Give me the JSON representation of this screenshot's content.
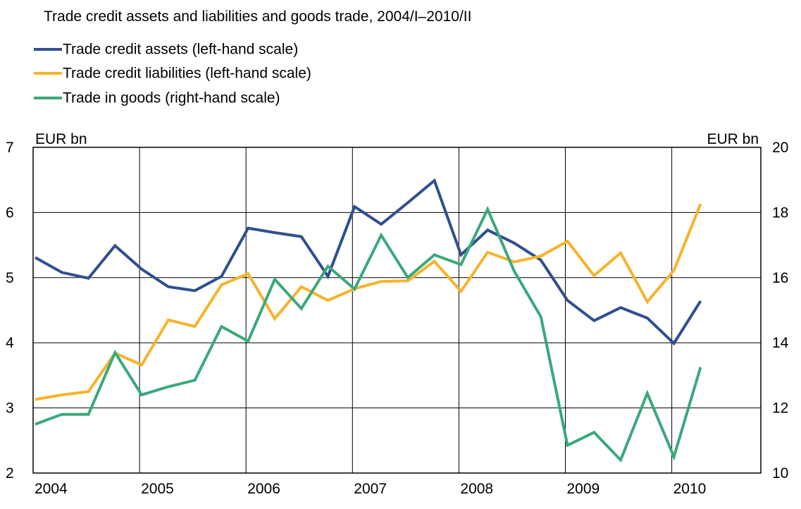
{
  "chart_data": {
    "type": "line",
    "title": "Trade credit assets and liabilities and goods trade, 2004/I–2010/II",
    "ylabel_left": "EUR bn",
    "ylabel_right": "EUR bn",
    "ylim_left": [
      2,
      7
    ],
    "ylim_right": [
      10,
      20
    ],
    "yticks_left": [
      "2",
      "3",
      "4",
      "5",
      "6",
      "7"
    ],
    "yticks_right": [
      "10",
      "12",
      "14",
      "16",
      "18",
      "20"
    ],
    "xticks": [
      "2004",
      "2005",
      "2006",
      "2007",
      "2008",
      "2009",
      "2010"
    ],
    "x": [
      "2004/I",
      "2004/II",
      "2004/III",
      "2004/IV",
      "2005/I",
      "2005/II",
      "2005/III",
      "2005/IV",
      "2006/I",
      "2006/II",
      "2006/III",
      "2006/IV",
      "2007/I",
      "2007/II",
      "2007/III",
      "2007/IV",
      "2008/I",
      "2008/II",
      "2008/III",
      "2008/IV",
      "2009/I",
      "2009/II",
      "2009/III",
      "2009/IV",
      "2010/I",
      "2010/II"
    ],
    "grid": true,
    "legend_position": "top-left",
    "series": [
      {
        "name": "Trade credit assets (left-hand scale)",
        "axis": "left",
        "color": "#2f4f8f",
        "values": [
          5.31,
          5.08,
          4.99,
          5.49,
          5.13,
          4.86,
          4.8,
          5.02,
          5.76,
          5.69,
          5.63,
          5.02,
          6.09,
          5.82,
          6.15,
          6.49,
          5.35,
          5.73,
          5.53,
          5.27,
          4.65,
          4.34,
          4.54,
          4.38,
          3.99,
          4.64
        ]
      },
      {
        "name": "Trade credit liabilities (left-hand scale)",
        "axis": "left",
        "color": "#f7b32b",
        "values": [
          3.13,
          3.2,
          3.25,
          3.84,
          3.66,
          4.35,
          4.25,
          4.89,
          5.06,
          4.37,
          4.86,
          4.65,
          4.83,
          4.94,
          4.95,
          5.25,
          4.79,
          5.39,
          5.24,
          5.33,
          5.56,
          5.03,
          5.38,
          4.63,
          5.11,
          6.13
        ]
      },
      {
        "name": "Trade in goods (right-hand scale)",
        "axis": "right",
        "color": "#3aa97a",
        "values": [
          11.5,
          11.8,
          11.8,
          13.7,
          12.4,
          12.65,
          12.85,
          14.5,
          14.05,
          15.95,
          15.05,
          16.35,
          15.65,
          17.3,
          16.0,
          16.7,
          16.4,
          18.1,
          16.2,
          14.8,
          10.85,
          11.25,
          10.4,
          12.45,
          10.5,
          13.25
        ]
      }
    ]
  }
}
